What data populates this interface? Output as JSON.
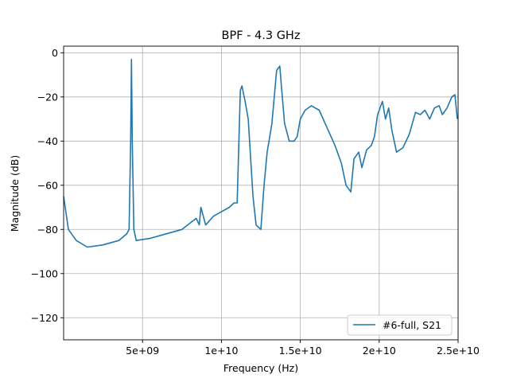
{
  "chart_data": {
    "type": "line",
    "title": "BPF - 4.3 GHz",
    "xlabel": "Frequency (Hz)",
    "ylabel": "Magnitude (dB)",
    "xlim": [
      0,
      25000000000
    ],
    "ylim": [
      -130,
      3
    ],
    "xticks": [
      {
        "value": 5000000000,
        "label": "5e+09"
      },
      {
        "value": 10000000000,
        "label": "1e+10"
      },
      {
        "value": 15000000000,
        "label": "1.5e+10"
      },
      {
        "value": 20000000000,
        "label": "2e+10"
      },
      {
        "value": 25000000000,
        "label": "2.5e+10"
      }
    ],
    "yticks": [
      {
        "value": 0,
        "label": "0"
      },
      {
        "value": -20,
        "label": "−20"
      },
      {
        "value": -40,
        "label": "−40"
      },
      {
        "value": -60,
        "label": "−60"
      },
      {
        "value": -80,
        "label": "−80"
      },
      {
        "value": -100,
        "label": "−100"
      },
      {
        "value": -120,
        "label": "−120"
      }
    ],
    "grid": true,
    "legend_position": "lower-right",
    "series": [
      {
        "name": "#6-full, S21",
        "color": "#1f77b4",
        "x": [
          0,
          300000000,
          800000000,
          1500000000,
          2500000000,
          3500000000,
          4000000000,
          4150000000,
          4250000000,
          4300000000,
          4350000000,
          4450000000,
          4600000000,
          5500000000,
          6500000000,
          7500000000,
          8400000000,
          8600000000,
          8700000000,
          9000000000,
          9500000000,
          10000000000,
          10500000000,
          10800000000,
          11000000000,
          11200000000,
          11300000000,
          11500000000,
          11700000000,
          12000000000,
          12200000000,
          12500000000,
          12700000000,
          12900000000,
          13200000000,
          13500000000,
          13700000000,
          13800000000,
          14000000000,
          14300000000,
          14600000000,
          14800000000,
          15000000000,
          15300000000,
          15700000000,
          16200000000,
          16700000000,
          17200000000,
          17600000000,
          17900000000,
          18200000000,
          18400000000,
          18700000000,
          18900000000,
          19200000000,
          19500000000,
          19700000000,
          19900000000,
          20200000000,
          20400000000,
          20600000000,
          20800000000,
          21100000000,
          21500000000,
          21900000000,
          22300000000,
          22600000000,
          22900000000,
          23200000000,
          23500000000,
          23800000000,
          24000000000,
          24300000000,
          24600000000,
          24800000000,
          24950000000
        ],
        "y": [
          -65,
          -80,
          -85,
          -88,
          -87,
          -85,
          -82,
          -80,
          -40,
          -3,
          -40,
          -80,
          -85,
          -84,
          -82,
          -80,
          -75,
          -78,
          -70,
          -78,
          -74,
          -72,
          -70,
          -68,
          -68,
          -17,
          -15,
          -22,
          -30,
          -65,
          -78,
          -80,
          -60,
          -45,
          -32,
          -8,
          -6,
          -15,
          -32,
          -40,
          -40,
          -38,
          -30,
          -26,
          -24,
          -26,
          -34,
          -42,
          -50,
          -60,
          -63,
          -48,
          -45,
          -52,
          -44,
          -42,
          -38,
          -28,
          -22,
          -30,
          -25,
          -35,
          -45,
          -43,
          -37,
          -27,
          -28,
          -26,
          -30,
          -25,
          -24,
          -28,
          -25,
          -20,
          -19,
          -30
        ]
      }
    ]
  }
}
